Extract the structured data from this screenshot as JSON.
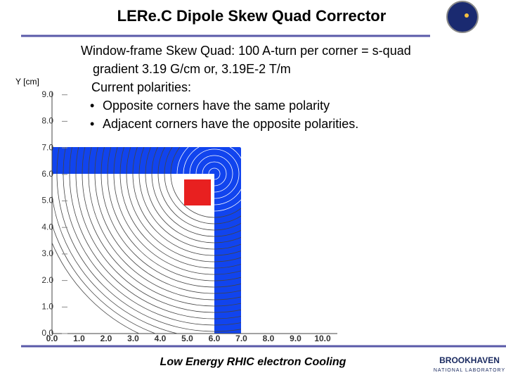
{
  "title": "LERe.C Dipole Skew Quad Corrector",
  "body": {
    "lines": [
      "Window-frame Skew Quad: 100 A-turn per corner = s-quad",
      "gradient 3.19 G/cm  or, 3.19E-2 T/m",
      "Current polarities:"
    ],
    "bullets": [
      "Opposite corners have the same polarity",
      "Adjacent corners have the opposite polarities."
    ]
  },
  "plot": {
    "y_label": "Y [cm]",
    "yticks": [
      "0.0",
      "1.0",
      "2.0",
      "3.0",
      "4.0",
      "5.0",
      "6.0",
      "7.0",
      "8.0",
      "9.0"
    ],
    "xticks": [
      "0.0",
      "1.0",
      "2.0",
      "3.0",
      "4.0",
      "5.0",
      "6.0",
      "7.0",
      "8.0",
      "9.0",
      "10.0"
    ]
  },
  "footer": {
    "text": "Low Energy RHIC electron Cooling",
    "logo_top": "BROOKHAVEN",
    "logo_bottom": "NATIONAL LABORATORY"
  }
}
